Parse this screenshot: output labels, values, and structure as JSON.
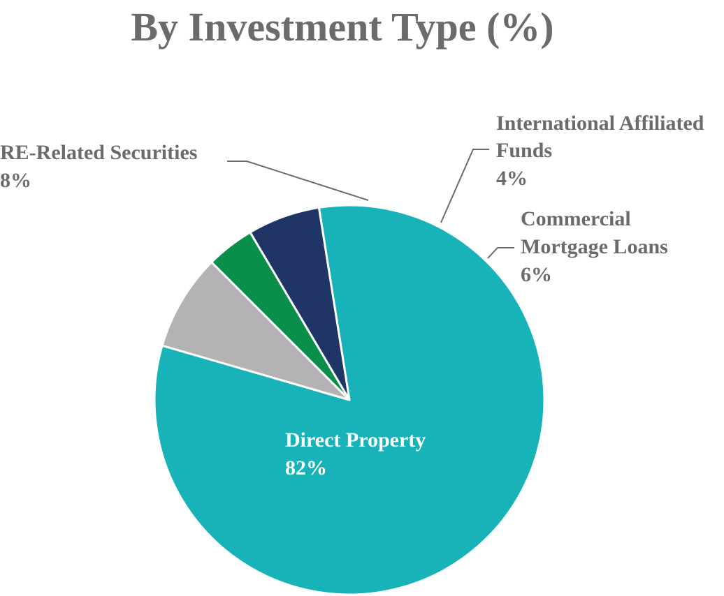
{
  "chart_data": {
    "type": "pie",
    "title": "By Investment Type (%)",
    "slices": [
      {
        "label": "Direct Property",
        "value": 82,
        "value_label": "82%",
        "color": "#17b3b8"
      },
      {
        "label": "RE-Related Securities",
        "value": 8,
        "value_label": "8%",
        "color": "#b3b3b3"
      },
      {
        "label": "International Affiliated Funds",
        "value": 4,
        "value_label": "4%",
        "color": "#0a8f4a"
      },
      {
        "label": "Commercial Mortgage Loans",
        "value": 6,
        "value_label": "6%",
        "color": "#1f3566"
      }
    ],
    "slice_border_color": "#ffffff",
    "label_color": "#6b6b6e",
    "inside_label_color": "#ffffff",
    "legend": "none"
  }
}
